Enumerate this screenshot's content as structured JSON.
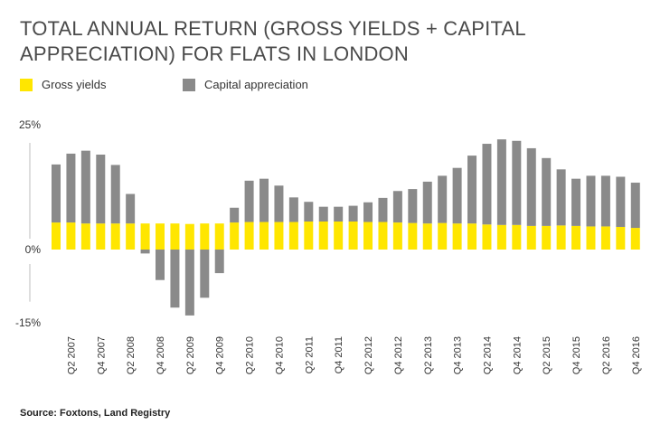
{
  "colors": {
    "gross_yields": "#ffe600",
    "capital_appreciation": "#8a8a8a",
    "axis": "#bdbdbd",
    "text": "#333333"
  },
  "source": "Source: Foxtons, Land Registry",
  "chart_data": {
    "type": "bar",
    "stacked": true,
    "title": "TOTAL ANNUAL RETURN (GROSS YIELDS + CAPITAL APPRECIATION) FOR FLATS IN LONDON",
    "xlabel": "",
    "ylabel": "",
    "ylim": [
      -15,
      25
    ],
    "yticks": [
      {
        "value": 25,
        "label": "25%"
      },
      {
        "value": 0,
        "label": "0%"
      },
      {
        "value": -15,
        "label": "-15%"
      }
    ],
    "legend": [
      "Gross yields",
      "Capital appreciation"
    ],
    "legend_position": "top-left",
    "categories": [
      "Q1 2007",
      "Q2 2007",
      "Q3 2007",
      "Q4 2007",
      "Q1 2008",
      "Q2 2008",
      "Q3 2008",
      "Q4 2008",
      "Q1 2009",
      "Q2 2009",
      "Q3 2009",
      "Q4 2009",
      "Q1 2010",
      "Q2 2010",
      "Q3 2010",
      "Q4 2010",
      "Q1 2011",
      "Q2 2011",
      "Q3 2011",
      "Q4 2011",
      "Q1 2012",
      "Q2 2012",
      "Q3 2012",
      "Q4 2012",
      "Q1 2013",
      "Q2 2013",
      "Q3 2013",
      "Q4 2013",
      "Q1 2014",
      "Q2 2014",
      "Q3 2014",
      "Q4 2014",
      "Q1 2015",
      "Q2 2015",
      "Q3 2015",
      "Q4 2015",
      "Q1 2016",
      "Q2 2016",
      "Q3 2016",
      "Q4 2016"
    ],
    "tick_labels": [
      {
        "index": 1,
        "label": "Q2 2007"
      },
      {
        "index": 3,
        "label": "Q4 2007"
      },
      {
        "index": 5,
        "label": "Q2 2008"
      },
      {
        "index": 7,
        "label": "Q4 2008"
      },
      {
        "index": 9,
        "label": "Q2 2009"
      },
      {
        "index": 11,
        "label": "Q4 2009"
      },
      {
        "index": 13,
        "label": "Q2 2010"
      },
      {
        "index": 15,
        "label": "Q4 2010"
      },
      {
        "index": 17,
        "label": "Q2 2011"
      },
      {
        "index": 19,
        "label": "Q4 2011"
      },
      {
        "index": 21,
        "label": "Q2 2012"
      },
      {
        "index": 23,
        "label": "Q4 2012"
      },
      {
        "index": 25,
        "label": "Q2 2013"
      },
      {
        "index": 27,
        "label": "Q4 2013"
      },
      {
        "index": 29,
        "label": "Q2 2014"
      },
      {
        "index": 31,
        "label": "Q4 2014"
      },
      {
        "index": 33,
        "label": "Q2 2015"
      },
      {
        "index": 35,
        "label": "Q4 2015"
      },
      {
        "index": 37,
        "label": "Q2 2016"
      },
      {
        "index": 39,
        "label": "Q4 2016"
      }
    ],
    "series": [
      {
        "name": "Gross yields",
        "values": [
          5.5,
          5.5,
          5.3,
          5.3,
          5.3,
          5.3,
          5.3,
          5.3,
          5.3,
          5.2,
          5.3,
          5.3,
          5.5,
          5.6,
          5.6,
          5.6,
          5.6,
          5.7,
          5.7,
          5.7,
          5.7,
          5.6,
          5.6,
          5.5,
          5.4,
          5.3,
          5.4,
          5.3,
          5.3,
          5.1,
          5.0,
          5.0,
          4.8,
          4.8,
          4.9,
          4.8,
          4.7,
          4.7,
          4.6,
          4.4
        ]
      },
      {
        "name": "Capital appreciation",
        "values": [
          11.8,
          14.0,
          14.8,
          14.0,
          11.9,
          6.0,
          -0.8,
          -6.2,
          -11.8,
          -13.4,
          -9.8,
          -4.8,
          3.0,
          8.4,
          8.8,
          7.4,
          5.0,
          4.0,
          3.0,
          3.0,
          3.2,
          4.0,
          4.9,
          6.4,
          6.9,
          8.5,
          9.6,
          11.3,
          13.8,
          16.4,
          17.4,
          17.1,
          15.8,
          13.8,
          11.4,
          9.6,
          10.3,
          10.3,
          10.2,
          9.2
        ]
      }
    ]
  }
}
